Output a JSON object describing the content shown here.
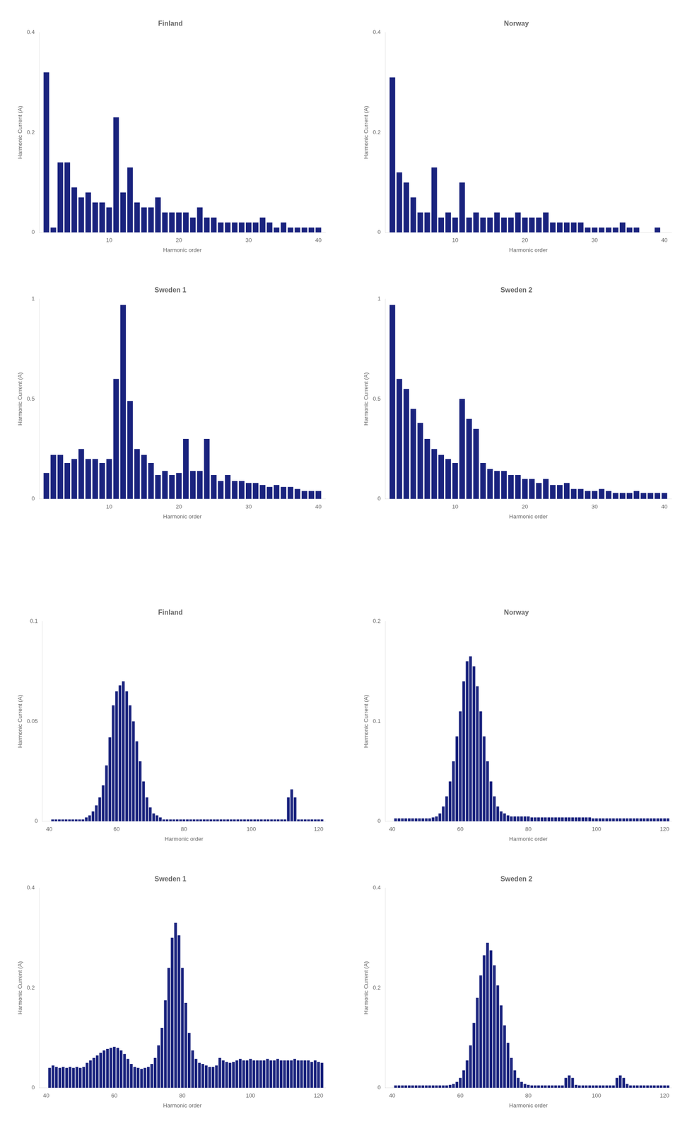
{
  "chart_data": [
    {
      "type": "bar",
      "title": "Finland",
      "x_label": "Harmonic order",
      "y_label": "Harmonic Current (A)",
      "color": "#1a237e",
      "grid": false,
      "xlim": [
        0,
        41
      ],
      "ylim": [
        0,
        0.4
      ],
      "xticks": [
        10,
        20,
        30,
        40
      ],
      "yticks": [
        0,
        0.2,
        0.4
      ],
      "x": [
        1,
        2,
        3,
        4,
        5,
        6,
        7,
        8,
        9,
        10,
        11,
        12,
        13,
        14,
        15,
        16,
        17,
        18,
        19,
        20,
        21,
        22,
        23,
        24,
        25,
        26,
        27,
        28,
        29,
        30,
        31,
        32,
        33,
        34,
        35,
        36,
        37,
        38,
        39,
        40
      ],
      "values": [
        0.32,
        0.01,
        0.14,
        0.14,
        0.09,
        0.07,
        0.08,
        0.06,
        0.06,
        0.05,
        0.23,
        0.08,
        0.13,
        0.06,
        0.05,
        0.05,
        0.07,
        0.04,
        0.04,
        0.04,
        0.04,
        0.03,
        0.05,
        0.03,
        0.03,
        0.02,
        0.02,
        0.02,
        0.02,
        0.02,
        0.02,
        0.03,
        0.02,
        0.01,
        0.02,
        0.01,
        0.01,
        0.01,
        0.01,
        0.01
      ]
    },
    {
      "type": "bar",
      "title": "Norway",
      "x_label": "Harmonic order",
      "y_label": "Harmonic Current (A)",
      "color": "#1a237e",
      "grid": false,
      "xlim": [
        0,
        41
      ],
      "ylim": [
        0,
        0.4
      ],
      "xticks": [
        10,
        20,
        30,
        40
      ],
      "yticks": [
        0,
        0.2,
        0.4
      ],
      "x": [
        1,
        2,
        3,
        4,
        5,
        6,
        7,
        8,
        9,
        10,
        11,
        12,
        13,
        14,
        15,
        16,
        17,
        18,
        19,
        20,
        21,
        22,
        23,
        24,
        25,
        26,
        27,
        28,
        29,
        30,
        31,
        32,
        33,
        34,
        35,
        36,
        37,
        38,
        39,
        40
      ],
      "values": [
        0.31,
        0.12,
        0.1,
        0.07,
        0.04,
        0.04,
        0.13,
        0.03,
        0.04,
        0.03,
        0.1,
        0.03,
        0.04,
        0.03,
        0.03,
        0.04,
        0.03,
        0.03,
        0.04,
        0.03,
        0.03,
        0.03,
        0.04,
        0.02,
        0.02,
        0.02,
        0.02,
        0.02,
        0.01,
        0.01,
        0.01,
        0.01,
        0.01,
        0.02,
        0.01,
        0.01,
        0.0,
        0.0,
        0.01,
        0.0
      ]
    },
    {
      "type": "bar",
      "title": "Sweden 1",
      "x_label": "Harmonic order",
      "y_label": "Harmonic Current (A)",
      "color": "#1a237e",
      "grid": false,
      "xlim": [
        0,
        41
      ],
      "ylim": [
        0,
        1.0
      ],
      "xticks": [
        10,
        20,
        30,
        40
      ],
      "yticks": [
        0,
        0.5,
        1
      ],
      "x": [
        1,
        2,
        3,
        4,
        5,
        6,
        7,
        8,
        9,
        10,
        11,
        12,
        13,
        14,
        15,
        16,
        17,
        18,
        19,
        20,
        21,
        22,
        23,
        24,
        25,
        26,
        27,
        28,
        29,
        30,
        31,
        32,
        33,
        34,
        35,
        36,
        37,
        38,
        39,
        40
      ],
      "values": [
        0.13,
        0.22,
        0.22,
        0.18,
        0.2,
        0.25,
        0.2,
        0.2,
        0.18,
        0.2,
        0.6,
        0.97,
        0.49,
        0.25,
        0.22,
        0.18,
        0.12,
        0.14,
        0.12,
        0.13,
        0.3,
        0.14,
        0.14,
        0.3,
        0.12,
        0.09,
        0.12,
        0.09,
        0.09,
        0.08,
        0.08,
        0.07,
        0.06,
        0.07,
        0.06,
        0.06,
        0.05,
        0.04,
        0.04,
        0.04
      ]
    },
    {
      "type": "bar",
      "title": "Sweden 2",
      "x_label": "Harmonic order",
      "y_label": "Harmonic Current (A)",
      "color": "#1a237e",
      "grid": false,
      "xlim": [
        0,
        41
      ],
      "ylim": [
        0,
        1.0
      ],
      "xticks": [
        10,
        20,
        30,
        40
      ],
      "yticks": [
        0,
        0.5,
        1
      ],
      "x": [
        1,
        2,
        3,
        4,
        5,
        6,
        7,
        8,
        9,
        10,
        11,
        12,
        13,
        14,
        15,
        16,
        17,
        18,
        19,
        20,
        21,
        22,
        23,
        24,
        25,
        26,
        27,
        28,
        29,
        30,
        31,
        32,
        33,
        34,
        35,
        36,
        37,
        38,
        39,
        40
      ],
      "values": [
        0.97,
        0.6,
        0.55,
        0.45,
        0.38,
        0.3,
        0.25,
        0.22,
        0.2,
        0.18,
        0.5,
        0.4,
        0.35,
        0.18,
        0.15,
        0.14,
        0.14,
        0.12,
        0.12,
        0.1,
        0.1,
        0.08,
        0.1,
        0.07,
        0.07,
        0.08,
        0.05,
        0.05,
        0.04,
        0.04,
        0.05,
        0.04,
        0.03,
        0.03,
        0.03,
        0.04,
        0.03,
        0.03,
        0.03,
        0.03
      ]
    },
    {
      "type": "bar",
      "title": "Finland",
      "x_label": "Harmonic order",
      "y_label": "Harmonic Current (A)",
      "color": "#1a237e",
      "grid": false,
      "xlim": [
        38,
        122
      ],
      "ylim": [
        0,
        0.1
      ],
      "xticks": [
        40,
        60,
        80,
        100,
        120
      ],
      "yticks": [
        0,
        0.05,
        0.1
      ],
      "x": [
        41,
        42,
        43,
        44,
        45,
        46,
        47,
        48,
        49,
        50,
        51,
        52,
        53,
        54,
        55,
        56,
        57,
        58,
        59,
        60,
        61,
        62,
        63,
        64,
        65,
        66,
        67,
        68,
        69,
        70,
        71,
        72,
        73,
        74,
        75,
        76,
        77,
        78,
        79,
        80,
        81,
        82,
        83,
        84,
        85,
        86,
        87,
        88,
        89,
        90,
        91,
        92,
        93,
        94,
        95,
        96,
        97,
        98,
        99,
        100,
        101,
        102,
        103,
        104,
        105,
        106,
        107,
        108,
        109,
        110,
        111,
        112,
        113,
        114,
        115,
        116,
        117,
        118,
        119,
        120,
        121
      ],
      "values": [
        0.001,
        0.001,
        0.001,
        0.001,
        0.001,
        0.001,
        0.001,
        0.001,
        0.001,
        0.001,
        0.002,
        0.003,
        0.005,
        0.008,
        0.012,
        0.018,
        0.028,
        0.042,
        0.058,
        0.065,
        0.068,
        0.07,
        0.065,
        0.058,
        0.05,
        0.04,
        0.03,
        0.02,
        0.012,
        0.007,
        0.004,
        0.003,
        0.002,
        0.001,
        0.001,
        0.001,
        0.001,
        0.001,
        0.001,
        0.001,
        0.001,
        0.001,
        0.001,
        0.001,
        0.001,
        0.001,
        0.001,
        0.001,
        0.001,
        0.001,
        0.001,
        0.001,
        0.001,
        0.001,
        0.001,
        0.001,
        0.001,
        0.001,
        0.001,
        0.001,
        0.001,
        0.001,
        0.001,
        0.001,
        0.001,
        0.001,
        0.001,
        0.001,
        0.001,
        0.001,
        0.012,
        0.016,
        0.012,
        0.001,
        0.001,
        0.001,
        0.001,
        0.001,
        0.001,
        0.001,
        0.001
      ]
    },
    {
      "type": "bar",
      "title": "Norway",
      "x_label": "Harmonic order",
      "y_label": "Harmonic Current (A)",
      "color": "#1a237e",
      "grid": false,
      "xlim": [
        38,
        122
      ],
      "ylim": [
        0,
        0.2
      ],
      "xticks": [
        40,
        60,
        80,
        100,
        120
      ],
      "yticks": [
        0,
        0.1,
        0.2
      ],
      "x": [
        41,
        42,
        43,
        44,
        45,
        46,
        47,
        48,
        49,
        50,
        51,
        52,
        53,
        54,
        55,
        56,
        57,
        58,
        59,
        60,
        61,
        62,
        63,
        64,
        65,
        66,
        67,
        68,
        69,
        70,
        71,
        72,
        73,
        74,
        75,
        76,
        77,
        78,
        79,
        80,
        81,
        82,
        83,
        84,
        85,
        86,
        87,
        88,
        89,
        90,
        91,
        92,
        93,
        94,
        95,
        96,
        97,
        98,
        99,
        100,
        101,
        102,
        103,
        104,
        105,
        106,
        107,
        108,
        109,
        110,
        111,
        112,
        113,
        114,
        115,
        116,
        117,
        118,
        119,
        120,
        121
      ],
      "values": [
        0.003,
        0.003,
        0.003,
        0.003,
        0.003,
        0.003,
        0.003,
        0.003,
        0.003,
        0.003,
        0.003,
        0.004,
        0.005,
        0.008,
        0.015,
        0.025,
        0.04,
        0.06,
        0.085,
        0.11,
        0.14,
        0.16,
        0.165,
        0.155,
        0.135,
        0.11,
        0.085,
        0.06,
        0.04,
        0.025,
        0.015,
        0.01,
        0.008,
        0.006,
        0.005,
        0.005,
        0.005,
        0.005,
        0.005,
        0.005,
        0.004,
        0.004,
        0.004,
        0.004,
        0.004,
        0.004,
        0.004,
        0.004,
        0.004,
        0.004,
        0.004,
        0.004,
        0.004,
        0.004,
        0.004,
        0.004,
        0.004,
        0.004,
        0.003,
        0.003,
        0.003,
        0.003,
        0.003,
        0.003,
        0.003,
        0.003,
        0.003,
        0.003,
        0.003,
        0.003,
        0.003,
        0.003,
        0.003,
        0.003,
        0.003,
        0.003,
        0.003,
        0.003,
        0.003,
        0.003,
        0.003
      ]
    },
    {
      "type": "bar",
      "title": "Sweden 1",
      "x_label": "Harmonic order",
      "y_label": "Harmonic Current (A)",
      "color": "#1a237e",
      "grid": false,
      "xlim": [
        38,
        122
      ],
      "ylim": [
        0,
        0.4
      ],
      "xticks": [
        40,
        60,
        80,
        100,
        120
      ],
      "yticks": [
        0,
        0.2,
        0.4
      ],
      "x": [
        41,
        42,
        43,
        44,
        45,
        46,
        47,
        48,
        49,
        50,
        51,
        52,
        53,
        54,
        55,
        56,
        57,
        58,
        59,
        60,
        61,
        62,
        63,
        64,
        65,
        66,
        67,
        68,
        69,
        70,
        71,
        72,
        73,
        74,
        75,
        76,
        77,
        78,
        79,
        80,
        81,
        82,
        83,
        84,
        85,
        86,
        87,
        88,
        89,
        90,
        91,
        92,
        93,
        94,
        95,
        96,
        97,
        98,
        99,
        100,
        101,
        102,
        103,
        104,
        105,
        106,
        107,
        108,
        109,
        110,
        111,
        112,
        113,
        114,
        115,
        116,
        117,
        118,
        119,
        120,
        121
      ],
      "values": [
        0.04,
        0.045,
        0.042,
        0.04,
        0.042,
        0.04,
        0.042,
        0.04,
        0.042,
        0.04,
        0.042,
        0.05,
        0.055,
        0.06,
        0.065,
        0.07,
        0.075,
        0.078,
        0.08,
        0.082,
        0.08,
        0.075,
        0.068,
        0.058,
        0.048,
        0.042,
        0.04,
        0.038,
        0.04,
        0.042,
        0.048,
        0.06,
        0.085,
        0.12,
        0.175,
        0.24,
        0.3,
        0.33,
        0.305,
        0.24,
        0.17,
        0.11,
        0.075,
        0.058,
        0.05,
        0.048,
        0.045,
        0.042,
        0.042,
        0.045,
        0.06,
        0.055,
        0.052,
        0.05,
        0.052,
        0.055,
        0.058,
        0.055,
        0.055,
        0.058,
        0.055,
        0.055,
        0.055,
        0.055,
        0.058,
        0.055,
        0.055,
        0.058,
        0.055,
        0.055,
        0.055,
        0.055,
        0.058,
        0.055,
        0.055,
        0.055,
        0.055,
        0.052,
        0.055,
        0.052,
        0.05
      ]
    },
    {
      "type": "bar",
      "title": "Sweden 2",
      "x_label": "Harmonic order",
      "y_label": "Harmonic Current (A)",
      "color": "#1a237e",
      "grid": false,
      "xlim": [
        38,
        122
      ],
      "ylim": [
        0,
        0.4
      ],
      "xticks": [
        40,
        60,
        80,
        100,
        120
      ],
      "yticks": [
        0,
        0.2,
        0.4
      ],
      "x": [
        41,
        42,
        43,
        44,
        45,
        46,
        47,
        48,
        49,
        50,
        51,
        52,
        53,
        54,
        55,
        56,
        57,
        58,
        59,
        60,
        61,
        62,
        63,
        64,
        65,
        66,
        67,
        68,
        69,
        70,
        71,
        72,
        73,
        74,
        75,
        76,
        77,
        78,
        79,
        80,
        81,
        82,
        83,
        84,
        85,
        86,
        87,
        88,
        89,
        90,
        91,
        92,
        93,
        94,
        95,
        96,
        97,
        98,
        99,
        100,
        101,
        102,
        103,
        104,
        105,
        106,
        107,
        108,
        109,
        110,
        111,
        112,
        113,
        114,
        115,
        116,
        117,
        118,
        119,
        120,
        121
      ],
      "values": [
        0.005,
        0.005,
        0.005,
        0.005,
        0.005,
        0.005,
        0.005,
        0.005,
        0.005,
        0.005,
        0.005,
        0.005,
        0.005,
        0.005,
        0.005,
        0.005,
        0.006,
        0.008,
        0.012,
        0.02,
        0.035,
        0.055,
        0.085,
        0.13,
        0.18,
        0.225,
        0.265,
        0.29,
        0.275,
        0.245,
        0.205,
        0.165,
        0.125,
        0.09,
        0.06,
        0.035,
        0.02,
        0.012,
        0.008,
        0.006,
        0.005,
        0.005,
        0.005,
        0.005,
        0.005,
        0.005,
        0.005,
        0.005,
        0.005,
        0.005,
        0.02,
        0.025,
        0.02,
        0.006,
        0.005,
        0.005,
        0.005,
        0.005,
        0.005,
        0.005,
        0.005,
        0.005,
        0.005,
        0.005,
        0.005,
        0.02,
        0.025,
        0.02,
        0.008,
        0.005,
        0.005,
        0.005,
        0.005,
        0.005,
        0.005,
        0.005,
        0.005,
        0.005,
        0.005,
        0.005,
        0.005
      ]
    }
  ]
}
